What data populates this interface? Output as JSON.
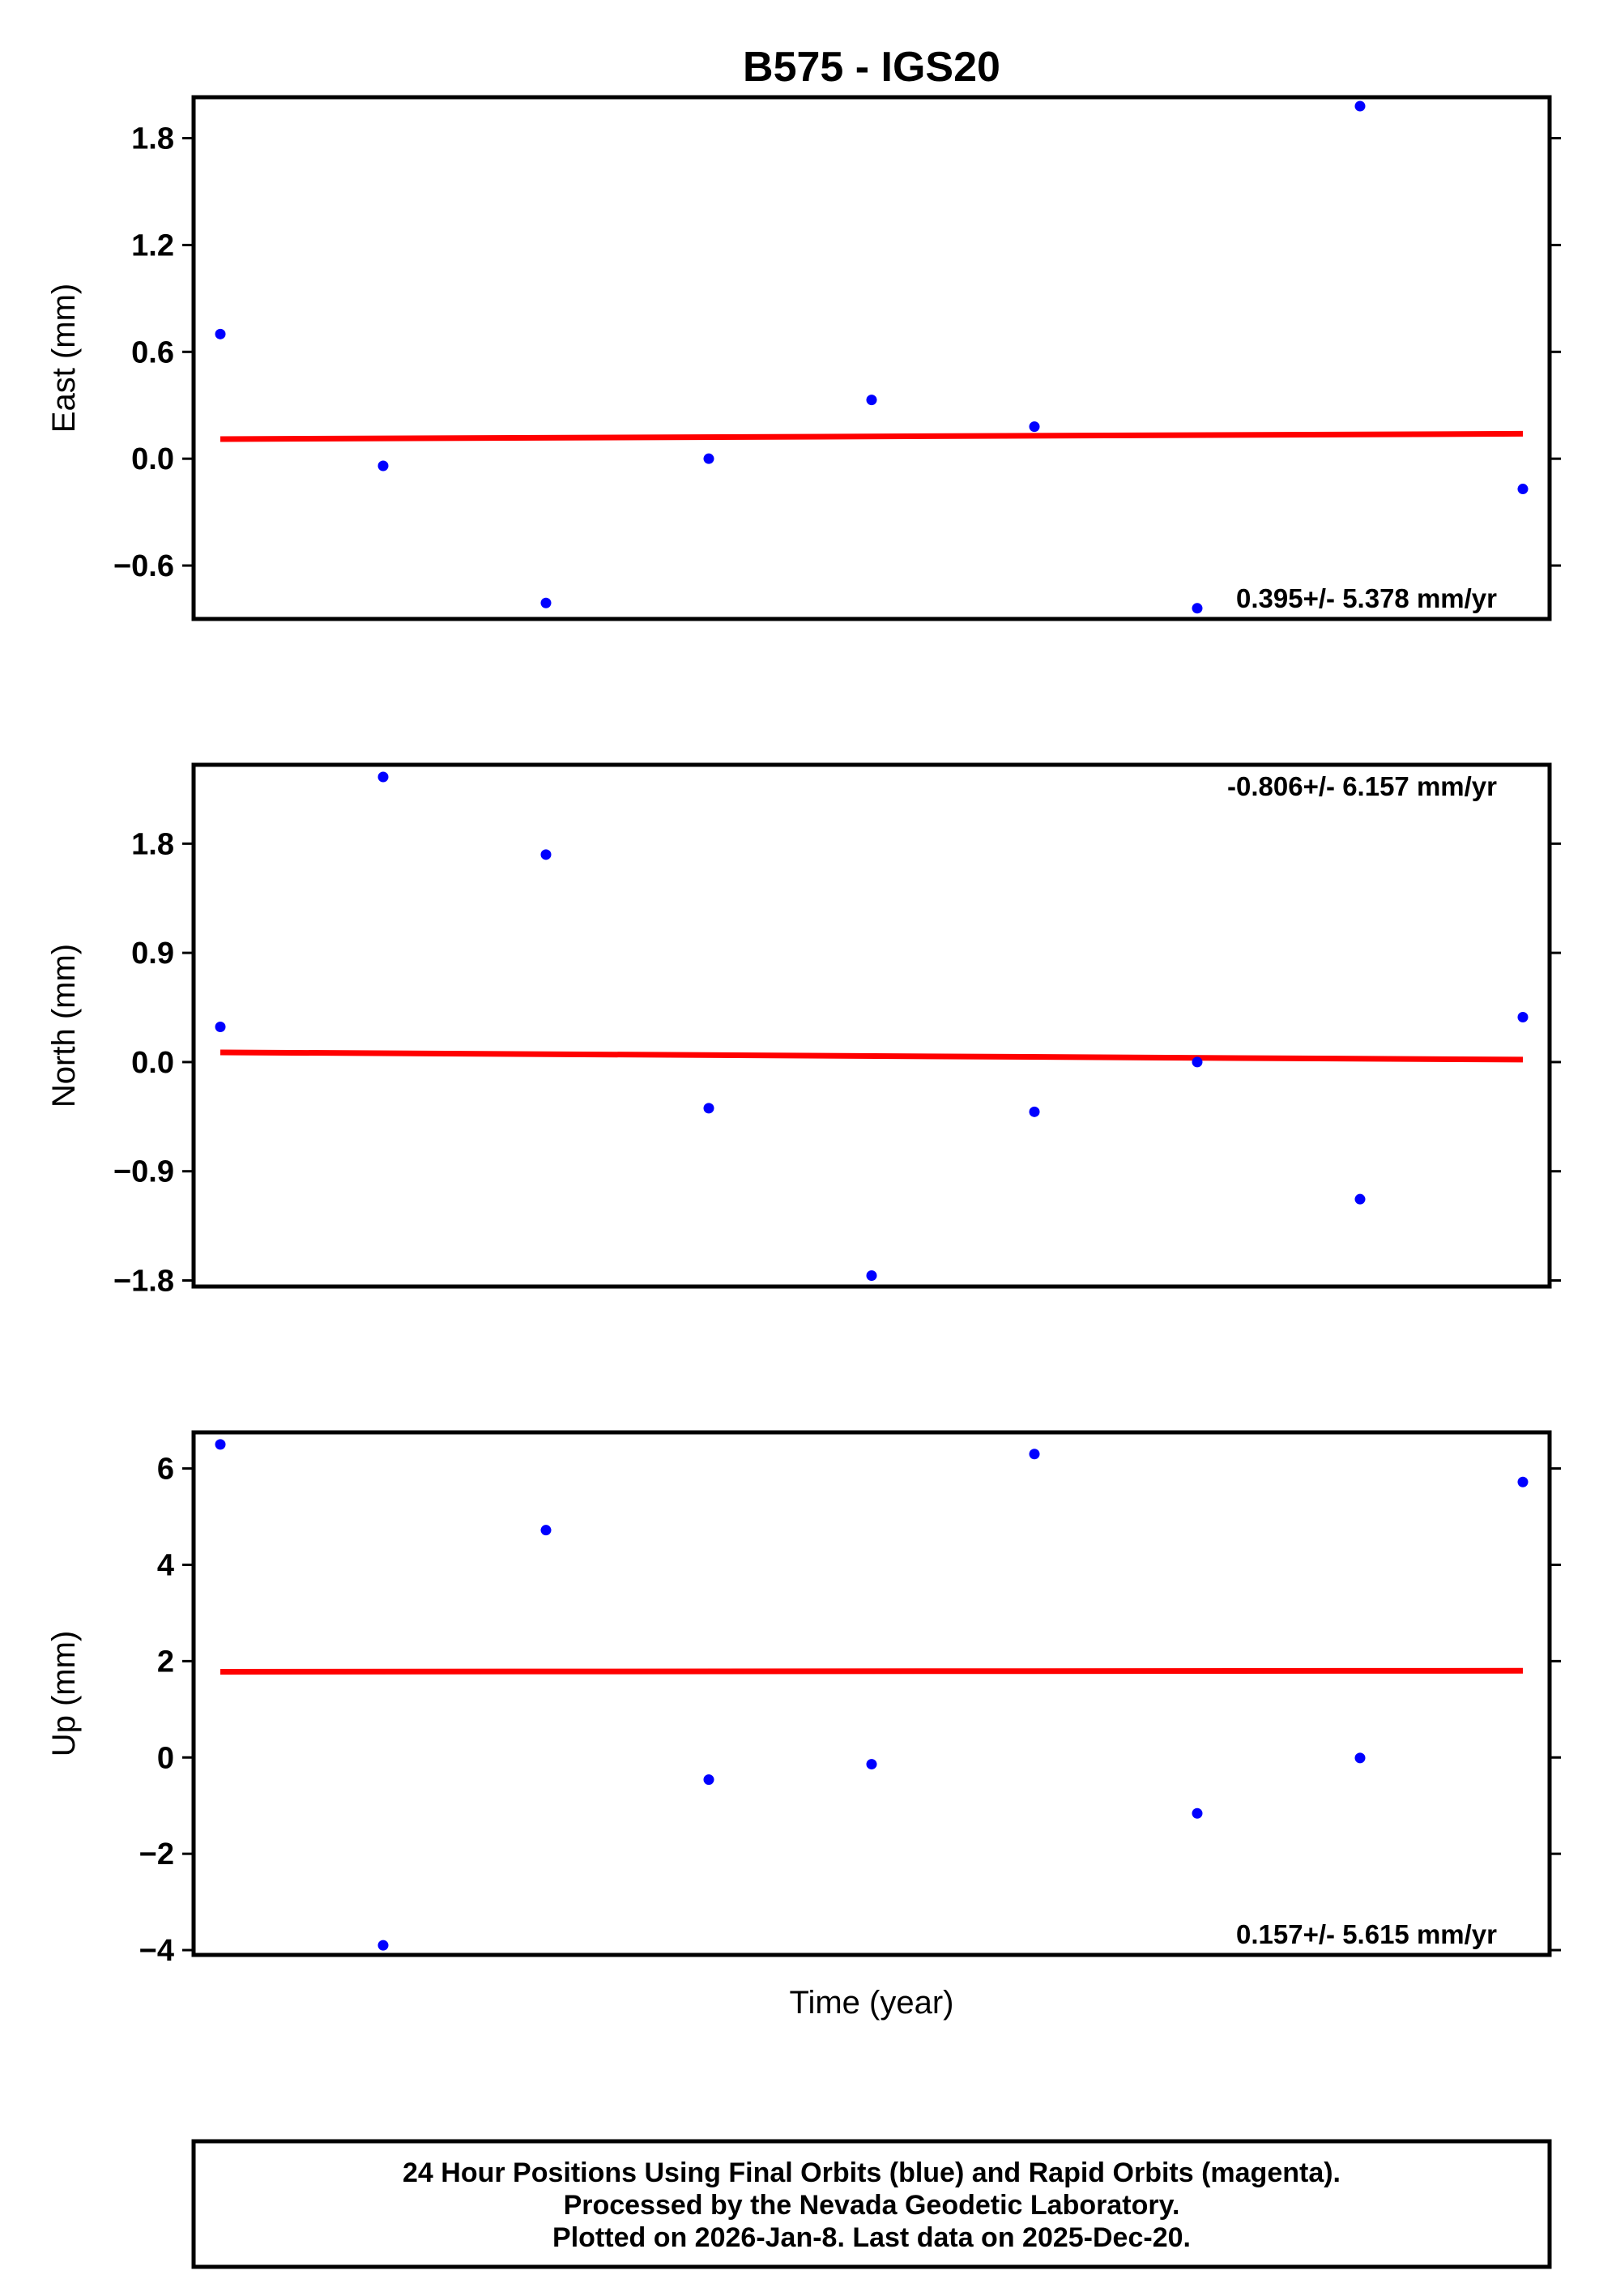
{
  "title": "B575 - IGS20",
  "xlabel": "Time (year)",
  "colors": {
    "final_orbits": "#0000ff",
    "trend_line": "#ff0000",
    "frame": "#000000"
  },
  "footer": {
    "line1": "24 Hour Positions Using Final Orbits (blue) and Rapid Orbits (magenta).",
    "line2": "Processed by the Nevada Geodetic Laboratory.",
    "line3": "Plotted on 2026-Jan-8. Last data on 2025-Dec-20."
  },
  "chart_data": [
    {
      "type": "scatter",
      "ylabel": "East (mm)",
      "ylim": [
        -0.9,
        2.03
      ],
      "yticks": [
        -0.6,
        0.0,
        0.6,
        1.2,
        1.8
      ],
      "ytick_labels": [
        "−0.6",
        "0.0",
        "0.6",
        "1.2",
        "1.8"
      ],
      "rate_label": "0.395+/- 5.378 mm/yr",
      "rate_position": "bottom-right",
      "trend": {
        "start": 0.11,
        "end": 0.14
      },
      "points": [
        0.7,
        -0.04,
        -0.81,
        0.0,
        0.33,
        0.18,
        -0.84,
        1.98,
        -0.17
      ]
    },
    {
      "type": "scatter",
      "ylabel": "North (mm)",
      "ylim": [
        -1.85,
        2.45
      ],
      "yticks": [
        -1.8,
        -0.9,
        0.0,
        0.9,
        1.8
      ],
      "ytick_labels": [
        "−1.8",
        "−0.9",
        "0.0",
        "0.9",
        "1.8"
      ],
      "rate_label": "-0.806+/- 6.157 mm/yr",
      "rate_position": "top-right",
      "trend": {
        "start": 0.08,
        "end": 0.02
      },
      "points": [
        0.29,
        2.35,
        1.71,
        -0.38,
        -1.76,
        -0.41,
        0.0,
        -1.13,
        0.37
      ]
    },
    {
      "type": "scatter",
      "ylabel": "Up (mm)",
      "ylim": [
        -4.1,
        6.75
      ],
      "yticks": [
        -4,
        -2,
        0,
        2,
        4,
        6
      ],
      "ytick_labels": [
        "−4",
        "−2",
        "0",
        "2",
        "4",
        "6"
      ],
      "rate_label": "0.157+/- 5.615 mm/yr",
      "rate_position": "bottom-right",
      "trend": {
        "start": 1.78,
        "end": 1.8
      },
      "points": [
        6.5,
        -3.9,
        4.72,
        -0.46,
        -0.14,
        6.3,
        -1.16,
        -0.01,
        5.72
      ]
    }
  ]
}
